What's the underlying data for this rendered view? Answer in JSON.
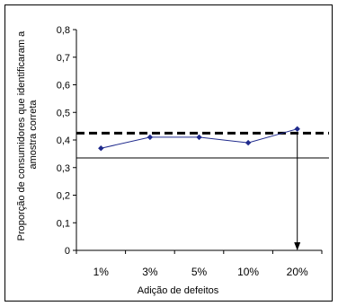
{
  "chart_data": {
    "type": "line",
    "categories": [
      "1%",
      "3%",
      "5%",
      "10%",
      "20%"
    ],
    "series": [
      {
        "values": [
          0.37,
          0.41,
          0.41,
          0.39,
          0.44
        ]
      }
    ],
    "reference_lines": {
      "dashed_level": 0.425,
      "solid_level": 0.335
    },
    "arrow_x_category_position": 4.5,
    "xlabel": "Adição de defeitos",
    "ylabel_lines": [
      "Proporção de consumidores que identificaram a",
      "amostra correta"
    ],
    "ylim": [
      0,
      0.8
    ],
    "yticks": [
      0,
      0.1,
      0.2,
      0.3,
      0.4,
      0.5,
      0.6,
      0.7,
      0.8
    ],
    "ytick_labels": [
      "0",
      "0,1",
      "0,2",
      "0,3",
      "0,4",
      "0,5",
      "0,6",
      "0,7",
      "0,8"
    ],
    "grid": false,
    "legend": "none",
    "colors": {
      "series": "#1f2a8c",
      "marker": "#1f2a8c",
      "reference": "#000000",
      "axis": "#000000"
    }
  }
}
